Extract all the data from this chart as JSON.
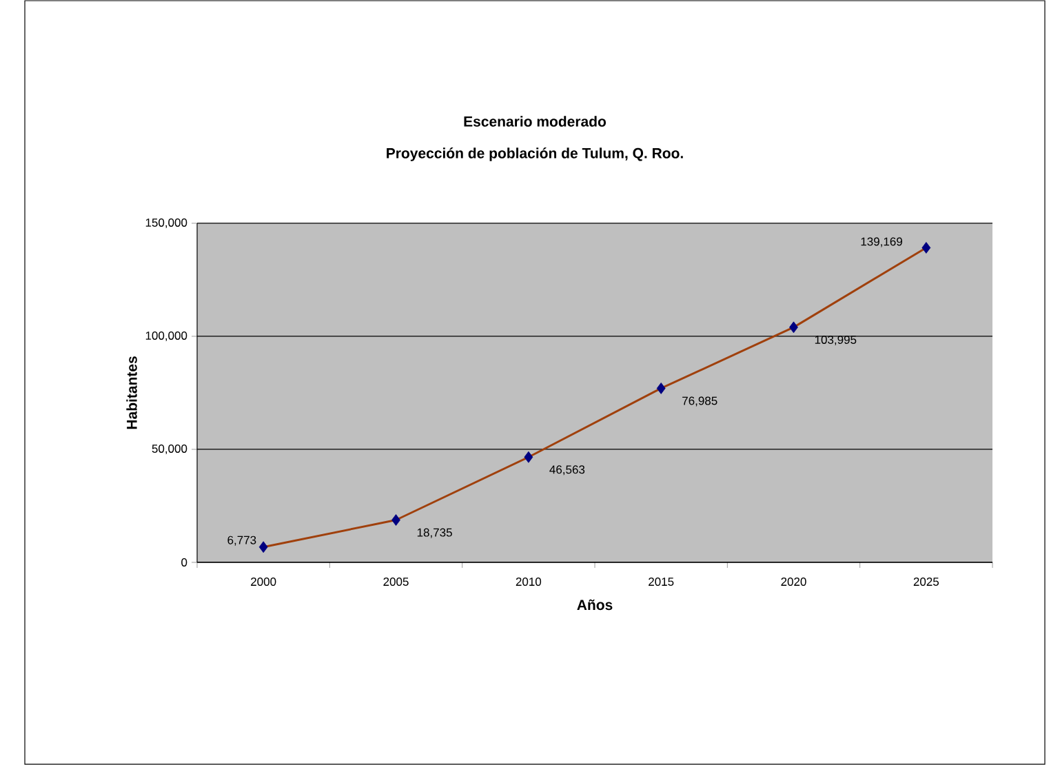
{
  "chart_data": {
    "type": "line",
    "title": "Escenario moderado",
    "subtitle": "Proyección de población de Tulum, Q. Roo.",
    "xlabel": "Años",
    "ylabel": "Habitantes",
    "categories": [
      "2000",
      "2005",
      "2010",
      "2015",
      "2020",
      "2025"
    ],
    "series": [
      {
        "color": "#a0400c",
        "values": [
          6773,
          18735,
          46563,
          76985,
          103995,
          139169
        ],
        "value_labels": [
          "6,773",
          "18,735",
          "46,563",
          "76,985",
          "103,995",
          "139,169"
        ],
        "colors": [
          "#000080",
          "#000080",
          "#000080",
          "#000080",
          "#000080",
          "#000080"
        ]
      }
    ],
    "ylim": [
      0,
      150000
    ],
    "yticks": [
      {
        "value": 0,
        "label": "0"
      },
      {
        "value": 50000,
        "label": "50,000"
      },
      {
        "value": 100000,
        "label": "100,000"
      },
      {
        "value": 150000,
        "label": "150,000"
      }
    ],
    "grid": "y",
    "marker": "diamond",
    "line_style": "solid"
  }
}
